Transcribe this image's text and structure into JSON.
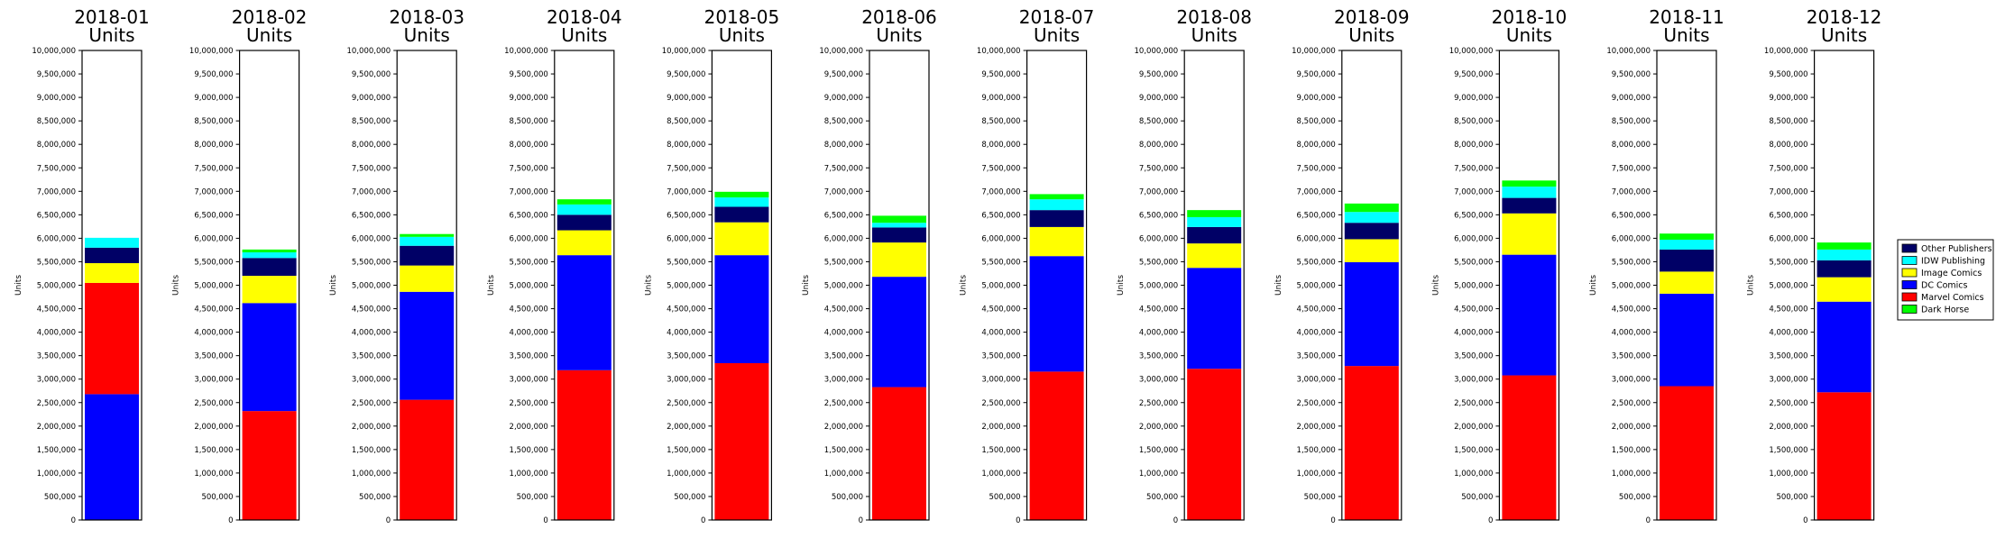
{
  "colors": {
    "Marvel Comics": "#ff0000",
    "DC Comics": "#0000ff",
    "Image Comics": "#ffff00",
    "IDW Publishing": "#00ffff",
    "Dark Horse": "#00ff00",
    "Other Publishers": "#000066"
  },
  "legend": {
    "placement": "right",
    "entries": [
      "Other Publishers",
      "IDW Publishing",
      "Image Comics",
      "DC Comics",
      "Marvel Comics",
      "Dark Horse"
    ]
  },
  "chart_data": [
    {
      "type": "bar",
      "title": "2018-01\nUnits",
      "ylabel": "Units",
      "ylim": [
        0,
        10000000
      ],
      "series": [
        {
          "name": "DC Comics",
          "value": 2680000
        },
        {
          "name": "Marvel Comics",
          "value": 2370000
        },
        {
          "name": "Image Comics",
          "value": 420000
        },
        {
          "name": "Other Publishers",
          "value": 330000
        },
        {
          "name": "IDW Publishing",
          "value": 210000
        },
        {
          "name": "Dark Horse",
          "value": 0
        }
      ]
    },
    {
      "type": "bar",
      "title": "2018-02\nUnits",
      "ylabel": "Units",
      "ylim": [
        0,
        10000000
      ],
      "series": [
        {
          "name": "Marvel Comics",
          "value": 2320000
        },
        {
          "name": "DC Comics",
          "value": 2300000
        },
        {
          "name": "Image Comics",
          "value": 580000
        },
        {
          "name": "Other Publishers",
          "value": 380000
        },
        {
          "name": "IDW Publishing",
          "value": 120000
        },
        {
          "name": "Dark Horse",
          "value": 60000
        }
      ]
    },
    {
      "type": "bar",
      "title": "2018-03\nUnits",
      "ylabel": "Units",
      "ylim": [
        0,
        10000000
      ],
      "series": [
        {
          "name": "Marvel Comics",
          "value": 2560000
        },
        {
          "name": "DC Comics",
          "value": 2300000
        },
        {
          "name": "Image Comics",
          "value": 560000
        },
        {
          "name": "Other Publishers",
          "value": 420000
        },
        {
          "name": "IDW Publishing",
          "value": 190000
        },
        {
          "name": "Dark Horse",
          "value": 60000
        }
      ]
    },
    {
      "type": "bar",
      "title": "2018-04\nUnits",
      "ylabel": "Units",
      "ylim": [
        0,
        10000000
      ],
      "series": [
        {
          "name": "Marvel Comics",
          "value": 3190000
        },
        {
          "name": "DC Comics",
          "value": 2450000
        },
        {
          "name": "Image Comics",
          "value": 530000
        },
        {
          "name": "Other Publishers",
          "value": 330000
        },
        {
          "name": "IDW Publishing",
          "value": 220000
        },
        {
          "name": "Dark Horse",
          "value": 110000
        }
      ]
    },
    {
      "type": "bar",
      "title": "2018-05\nUnits",
      "ylabel": "Units",
      "ylim": [
        0,
        10000000
      ],
      "series": [
        {
          "name": "Marvel Comics",
          "value": 3340000
        },
        {
          "name": "DC Comics",
          "value": 2300000
        },
        {
          "name": "Image Comics",
          "value": 700000
        },
        {
          "name": "Other Publishers",
          "value": 330000
        },
        {
          "name": "IDW Publishing",
          "value": 200000
        },
        {
          "name": "Dark Horse",
          "value": 120000
        }
      ]
    },
    {
      "type": "bar",
      "title": "2018-06\nUnits",
      "ylabel": "Units",
      "ylim": [
        0,
        10000000
      ],
      "series": [
        {
          "name": "Marvel Comics",
          "value": 2830000
        },
        {
          "name": "DC Comics",
          "value": 2350000
        },
        {
          "name": "Image Comics",
          "value": 730000
        },
        {
          "name": "Other Publishers",
          "value": 320000
        },
        {
          "name": "IDW Publishing",
          "value": 100000
        },
        {
          "name": "Dark Horse",
          "value": 150000
        }
      ]
    },
    {
      "type": "bar",
      "title": "2018-07\nUnits",
      "ylabel": "Units",
      "ylim": [
        0,
        10000000
      ],
      "series": [
        {
          "name": "Marvel Comics",
          "value": 3160000
        },
        {
          "name": "DC Comics",
          "value": 2460000
        },
        {
          "name": "Image Comics",
          "value": 620000
        },
        {
          "name": "Other Publishers",
          "value": 360000
        },
        {
          "name": "IDW Publishing",
          "value": 230000
        },
        {
          "name": "Dark Horse",
          "value": 110000
        }
      ]
    },
    {
      "type": "bar",
      "title": "2018-08\nUnits",
      "ylabel": "Units",
      "ylim": [
        0,
        10000000
      ],
      "series": [
        {
          "name": "Marvel Comics",
          "value": 3220000
        },
        {
          "name": "DC Comics",
          "value": 2150000
        },
        {
          "name": "Image Comics",
          "value": 520000
        },
        {
          "name": "Other Publishers",
          "value": 350000
        },
        {
          "name": "IDW Publishing",
          "value": 210000
        },
        {
          "name": "Dark Horse",
          "value": 150000
        }
      ]
    },
    {
      "type": "bar",
      "title": "2018-09\nUnits",
      "ylabel": "Units",
      "ylim": [
        0,
        10000000
      ],
      "series": [
        {
          "name": "Marvel Comics",
          "value": 3280000
        },
        {
          "name": "DC Comics",
          "value": 2210000
        },
        {
          "name": "Image Comics",
          "value": 490000
        },
        {
          "name": "Other Publishers",
          "value": 350000
        },
        {
          "name": "IDW Publishing",
          "value": 230000
        },
        {
          "name": "Dark Horse",
          "value": 180000
        }
      ]
    },
    {
      "type": "bar",
      "title": "2018-10\nUnits",
      "ylabel": "Units",
      "ylim": [
        0,
        10000000
      ],
      "series": [
        {
          "name": "Marvel Comics",
          "value": 3080000
        },
        {
          "name": "DC Comics",
          "value": 2570000
        },
        {
          "name": "Image Comics",
          "value": 880000
        },
        {
          "name": "Other Publishers",
          "value": 330000
        },
        {
          "name": "IDW Publishing",
          "value": 240000
        },
        {
          "name": "Dark Horse",
          "value": 130000
        }
      ]
    },
    {
      "type": "bar",
      "title": "2018-11\nUnits",
      "ylabel": "Units",
      "ylim": [
        0,
        10000000
      ],
      "series": [
        {
          "name": "Marvel Comics",
          "value": 2850000
        },
        {
          "name": "DC Comics",
          "value": 1970000
        },
        {
          "name": "Image Comics",
          "value": 470000
        },
        {
          "name": "Other Publishers",
          "value": 470000
        },
        {
          "name": "IDW Publishing",
          "value": 210000
        },
        {
          "name": "Dark Horse",
          "value": 130000
        }
      ]
    },
    {
      "type": "bar",
      "title": "2018-12\nUnits",
      "ylabel": "Units",
      "ylim": [
        0,
        10000000
      ],
      "series": [
        {
          "name": "Marvel Comics",
          "value": 2720000
        },
        {
          "name": "DC Comics",
          "value": 1930000
        },
        {
          "name": "Image Comics",
          "value": 520000
        },
        {
          "name": "Other Publishers",
          "value": 360000
        },
        {
          "name": "IDW Publishing",
          "value": 230000
        },
        {
          "name": "Dark Horse",
          "value": 150000
        }
      ]
    }
  ]
}
